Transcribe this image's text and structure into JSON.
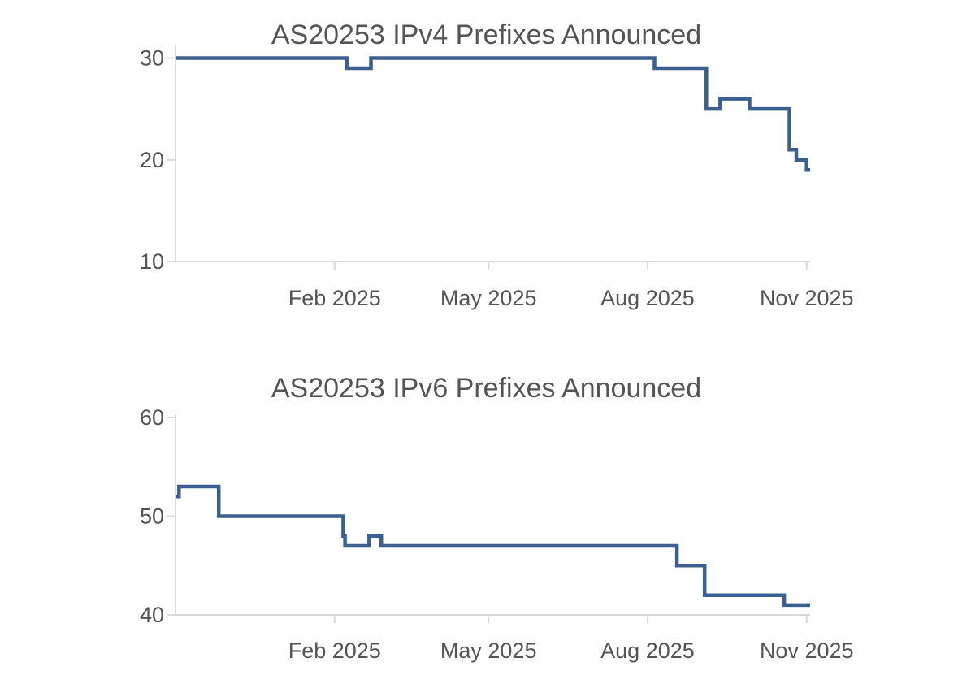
{
  "chart_data": [
    {
      "type": "line",
      "title": "AS20253 IPv4 Prefixes Announced",
      "xlabel": "",
      "ylabel": "",
      "x_ticks": [
        "Feb 2025",
        "May 2025",
        "Aug 2025",
        "Nov 2025"
      ],
      "x_tick_dates": [
        "2025-02-01",
        "2025-05-01",
        "2025-08-01",
        "2025-11-01"
      ],
      "y_ticks": [
        10,
        20,
        30
      ],
      "xlim": [
        "2024-11-01",
        "2025-11-03"
      ],
      "ylim": [
        10,
        31
      ],
      "grid": false,
      "line_color": "#3b6090",
      "series": [
        {
          "interpolation": "step",
          "x": [
            "2024-11-01",
            "2025-02-08",
            "2025-02-22",
            "2025-08-05",
            "2025-09-04",
            "2025-09-12",
            "2025-09-29",
            "2025-10-22",
            "2025-10-26",
            "2025-11-01",
            "2025-11-03"
          ],
          "y": [
            30,
            29,
            30,
            29,
            25,
            26,
            25,
            21,
            20,
            19,
            19
          ]
        }
      ]
    },
    {
      "type": "line",
      "title": "AS20253 IPv6 Prefixes Announced",
      "xlabel": "",
      "ylabel": "",
      "x_ticks": [
        "Feb 2025",
        "May 2025",
        "Aug 2025",
        "Nov 2025"
      ],
      "x_tick_dates": [
        "2025-02-01",
        "2025-05-01",
        "2025-08-01",
        "2025-11-01"
      ],
      "y_ticks": [
        40,
        50,
        60
      ],
      "xlim": [
        "2024-11-01",
        "2025-11-03"
      ],
      "ylim": [
        40,
        60
      ],
      "grid": false,
      "line_color": "#3b6090",
      "series": [
        {
          "interpolation": "step",
          "x": [
            "2024-11-01",
            "2024-11-03",
            "2024-11-26",
            "2025-02-06",
            "2025-02-07",
            "2025-02-21",
            "2025-02-28",
            "2025-08-18",
            "2025-09-03",
            "2025-10-19",
            "2025-11-03"
          ],
          "y": [
            52,
            53,
            50,
            48,
            47,
            48,
            47,
            45,
            42,
            41,
            41
          ]
        }
      ]
    }
  ]
}
